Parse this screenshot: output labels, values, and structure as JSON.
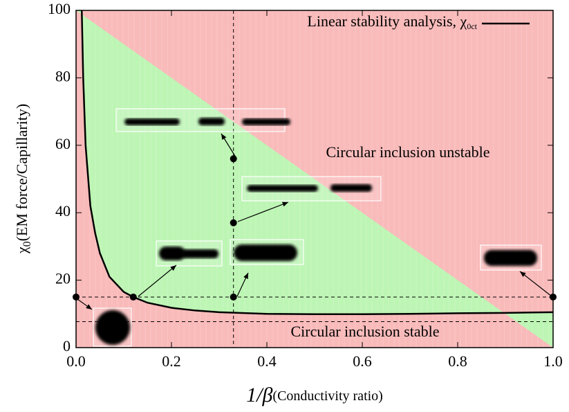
{
  "chart_data": {
    "type": "line",
    "xlabel": [
      "1/β",
      "(Conductivity ratio)"
    ],
    "ylabel": [
      "χ",
      "0",
      "(EM force/Capillarity)"
    ],
    "xlim": [
      0,
      1
    ],
    "ylim": [
      0,
      100
    ],
    "xticks": [
      {
        "value": 0,
        "label": "0.0"
      },
      0.2,
      0.4,
      0.6,
      0.8,
      {
        "value": 1,
        "label": "1.0"
      }
    ],
    "yticks": [
      0,
      20,
      40,
      60,
      80,
      100
    ],
    "region_colors": {
      "above": "#f9baba",
      "below": "#bdf5b4"
    },
    "series": [
      {
        "name": "Linear stability analysis, χ",
        "name_subscript": "0ct",
        "color": "#000000",
        "x": [
          0.012,
          0.015,
          0.02,
          0.03,
          0.04,
          0.05,
          0.07,
          0.1,
          0.12,
          0.15,
          0.2,
          0.25,
          0.3,
          0.4,
          0.5,
          0.6,
          0.7,
          0.8,
          0.9,
          1.0
        ],
        "values": [
          100,
          80,
          60,
          42,
          34,
          28,
          21,
          16.5,
          15,
          13.3,
          11.8,
          11,
          10.5,
          10,
          9.9,
          9.9,
          10,
          10.2,
          10.3,
          10.5
        ]
      },
      {
        "color": "#000000",
        "marker": "circle",
        "x": [
          0,
          0.12,
          0.33,
          0.33,
          0.33,
          1.0
        ],
        "values": [
          15,
          15,
          15,
          37,
          56,
          15
        ]
      }
    ],
    "reflines": {
      "x": [
        0.33
      ],
      "y": [
        15,
        7.7
      ]
    },
    "annotations": [
      "Circular inclusion unstable",
      "Circular inclusion stable"
    ]
  }
}
